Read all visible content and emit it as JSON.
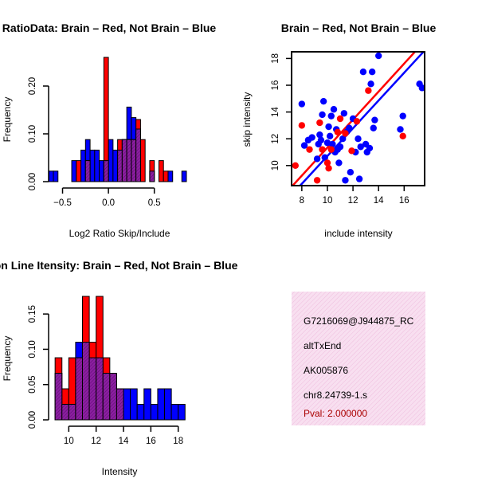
{
  "chart_data": [
    {
      "id": "ratio",
      "type": "histogram",
      "title": "RatioData: Brain – Red, Not Brain – Blue",
      "xlabel": "Log2 Ratio Skip/Include",
      "ylabel": "Frequency",
      "xlim": [
        -0.6,
        0.85
      ],
      "ylim": [
        0,
        0.26
      ],
      "bin_width": 0.05,
      "x_ticks": [
        -0.5,
        0.0,
        0.5
      ],
      "x_tick_labels": [
        "−0.5",
        "0.0",
        "0.5"
      ],
      "y_ticks": [
        0.0,
        0.1,
        0.2
      ],
      "y_tick_labels": [
        "0.00",
        "0.10",
        "0.20"
      ],
      "series": [
        {
          "name": "Not Brain",
          "color": "#0000ff",
          "starts": [
            -0.65,
            -0.6,
            -0.4,
            -0.3,
            -0.25,
            -0.2,
            -0.15,
            -0.1,
            -0.05,
            0.0,
            0.05,
            0.1,
            0.15,
            0.2,
            0.25,
            0.3,
            0.45,
            0.65,
            0.8
          ],
          "values": [
            0.022,
            0.022,
            0.044,
            0.066,
            0.088,
            0.066,
            0.066,
            0.044,
            0.044,
            0.088,
            0.066,
            0.066,
            0.088,
            0.156,
            0.134,
            0.11,
            0.022,
            0.022,
            0.022
          ]
        },
        {
          "name": "Brain",
          "color": "#ff0000",
          "starts": [
            -0.35,
            -0.25,
            -0.05,
            0.1,
            0.15,
            0.2,
            0.25,
            0.3,
            0.35,
            0.45,
            0.55,
            0.6
          ],
          "values": [
            0.044,
            0.044,
            0.26,
            0.088,
            0.088,
            0.088,
            0.088,
            0.13,
            0.088,
            0.044,
            0.044,
            0.022
          ]
        }
      ]
    },
    {
      "id": "scatter",
      "type": "scatter",
      "title": "Brain – Red, Not Brain – Blue",
      "xlabel": "include intensity",
      "ylabel": "skip intensity",
      "xlim": [
        7.2,
        17.6
      ],
      "ylim": [
        8.5,
        18.5
      ],
      "x_ticks": [
        8,
        10,
        12,
        14,
        16
      ],
      "x_tick_labels": [
        "8",
        "10",
        "12",
        "14",
        "16"
      ],
      "y_ticks": [
        10,
        12,
        14,
        16,
        18
      ],
      "y_tick_labels": [
        "10",
        "12",
        "14",
        "16",
        "18"
      ],
      "series": [
        {
          "name": "Not Brain",
          "color": "#0000ff",
          "points": [
            [
              8.0,
              14.6
            ],
            [
              8.2,
              11.5
            ],
            [
              8.5,
              11.9
            ],
            [
              8.8,
              12.1
            ],
            [
              9.2,
              10.5
            ],
            [
              9.3,
              11.6
            ],
            [
              9.4,
              12.3
            ],
            [
              9.5,
              11.9
            ],
            [
              9.6,
              13.8
            ],
            [
              9.7,
              14.8
            ],
            [
              9.8,
              10.6
            ],
            [
              10.0,
              11.7
            ],
            [
              10.2,
              12.2
            ],
            [
              10.3,
              13.7
            ],
            [
              10.4,
              11.6
            ],
            [
              10.5,
              14.2
            ],
            [
              10.6,
              11.0
            ],
            [
              10.7,
              12.7
            ],
            [
              10.8,
              11.2
            ],
            [
              10.9,
              10.2
            ],
            [
              11.0,
              11.4
            ],
            [
              11.2,
              12.0
            ],
            [
              11.3,
              13.9
            ],
            [
              11.5,
              12.5
            ],
            [
              11.7,
              12.8
            ],
            [
              11.8,
              9.5
            ],
            [
              12.0,
              13.5
            ],
            [
              12.2,
              11.0
            ],
            [
              12.4,
              12.0
            ],
            [
              12.5,
              9.0
            ],
            [
              12.6,
              11.4
            ],
            [
              12.8,
              17.0
            ],
            [
              13.0,
              11.6
            ],
            [
              13.1,
              11.0
            ],
            [
              13.3,
              11.3
            ],
            [
              13.4,
              16.1
            ],
            [
              13.5,
              17.0
            ],
            [
              13.6,
              12.8
            ],
            [
              13.7,
              13.4
            ],
            [
              14.0,
              18.2
            ],
            [
              15.7,
              12.7
            ],
            [
              15.9,
              13.7
            ],
            [
              17.2,
              16.1
            ],
            [
              17.4,
              15.8
            ],
            [
              10.1,
              12.9
            ],
            [
              11.4,
              8.9
            ]
          ]
        },
        {
          "name": "Brain",
          "color": "#ff0000",
          "points": [
            [
              7.5,
              10.0
            ],
            [
              8.0,
              13.0
            ],
            [
              8.6,
              11.2
            ],
            [
              9.2,
              8.9
            ],
            [
              9.4,
              13.2
            ],
            [
              9.6,
              11.2
            ],
            [
              10.0,
              10.2
            ],
            [
              10.1,
              9.8
            ],
            [
              10.3,
              11.2
            ],
            [
              10.8,
              12.5
            ],
            [
              11.0,
              13.5
            ],
            [
              11.4,
              12.4
            ],
            [
              11.9,
              11.1
            ],
            [
              12.3,
              13.3
            ],
            [
              13.2,
              15.6
            ],
            [
              15.9,
              12.2
            ]
          ]
        }
      ],
      "fit_lines": [
        {
          "name": "Brain fit",
          "color": "#ff0000",
          "from": [
            7.0,
            8.2
          ],
          "to": [
            17.8,
            19.5
          ]
        },
        {
          "name": "Not Brain fit",
          "color": "#0000ff",
          "from": [
            7.0,
            7.6
          ],
          "to": [
            17.8,
            18.8
          ]
        }
      ]
    },
    {
      "id": "intensity",
      "type": "histogram",
      "title": "Exon Line Itensity: Brain – Red, Not Brain – Blue",
      "xlabel": "Intensity",
      "ylabel": "Frequency",
      "xlim": [
        8.7,
        18.6
      ],
      "ylim": [
        0,
        0.175
      ],
      "bin_width": 0.5,
      "x_ticks": [
        10,
        12,
        14,
        16,
        18
      ],
      "x_tick_labels": [
        "10",
        "12",
        "14",
        "16",
        "18"
      ],
      "y_ticks": [
        0.0,
        0.05,
        0.1,
        0.15
      ],
      "y_tick_labels": [
        "0.00",
        "0.05",
        "0.10",
        "0.15"
      ],
      "series": [
        {
          "name": "Not Brain",
          "color": "#0000ff",
          "starts": [
            9.0,
            9.5,
            10.0,
            10.5,
            11.0,
            11.5,
            12.0,
            12.5,
            13.0,
            13.5,
            14.0,
            14.5,
            15.0,
            15.5,
            16.0,
            16.5,
            17.0,
            17.5,
            18.0
          ],
          "values": [
            0.066,
            0.022,
            0.022,
            0.11,
            0.11,
            0.088,
            0.088,
            0.066,
            0.066,
            0.044,
            0.044,
            0.044,
            0.022,
            0.044,
            0.022,
            0.044,
            0.044,
            0.022,
            0.022
          ]
        },
        {
          "name": "Brain",
          "color": "#ff0000",
          "starts": [
            9.0,
            9.5,
            10.0,
            10.5,
            11.0,
            11.5,
            12.0,
            12.5,
            13.0,
            13.5
          ],
          "values": [
            0.088,
            0.044,
            0.088,
            0.088,
            0.175,
            0.11,
            0.175,
            0.088,
            0.066,
            0.044
          ]
        }
      ]
    }
  ],
  "info_panel": {
    "probe_id": "G7216069@J944875_RC",
    "event_type": "altTxEnd",
    "accession": "AK005876",
    "location": "chr8.24739-1.s",
    "pval": "Pval: 2.000000",
    "background_color": "#f8dff0",
    "hatch_color": "#ecb4d8",
    "pval_color": "#aa0000"
  },
  "colors": {
    "not_brain": "#0000ff",
    "brain": "#ff0000",
    "overlap": "#8b1fa0",
    "overlap_hatch": "#5a0a6e"
  }
}
